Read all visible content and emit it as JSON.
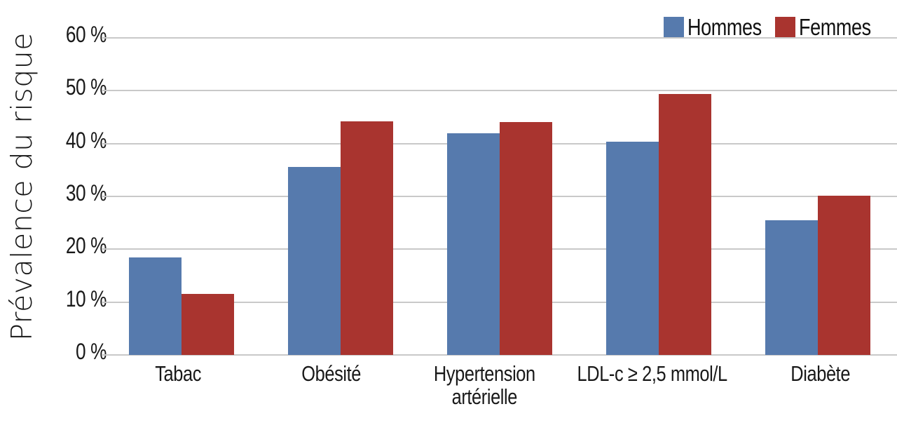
{
  "chart_data": {
    "type": "bar",
    "ylabel": "Prévalence du risque",
    "categories": [
      "Tabac",
      "Obésité",
      "Hypertension\nartérielle",
      "LDL-c ≥ 2,5 mmol/L",
      "Diabète"
    ],
    "series": [
      {
        "name": "Hommes",
        "color": "#567AAD",
        "values": [
          18.5,
          35.6,
          41.9,
          40.4,
          25.5
        ]
      },
      {
        "name": "Femmes",
        "color": "#A9342F",
        "values": [
          11.6,
          44.2,
          44.1,
          49.4,
          30.1
        ]
      }
    ],
    "ylim": [
      0,
      60
    ],
    "y_ticks": [
      {
        "value": 0,
        "label": "0 %"
      },
      {
        "value": 10,
        "label": "10 %"
      },
      {
        "value": 20,
        "label": "20 %"
      },
      {
        "value": 30,
        "label": "30 %"
      },
      {
        "value": 40,
        "label": "40 %"
      },
      {
        "value": 50,
        "label": "50 %"
      },
      {
        "value": 60,
        "label": "60 %"
      }
    ],
    "grid": true,
    "legend_position": "top-right",
    "gridline_color": "#c9c9c9",
    "text_color": "#191919",
    "background_color": "#ffffff"
  }
}
